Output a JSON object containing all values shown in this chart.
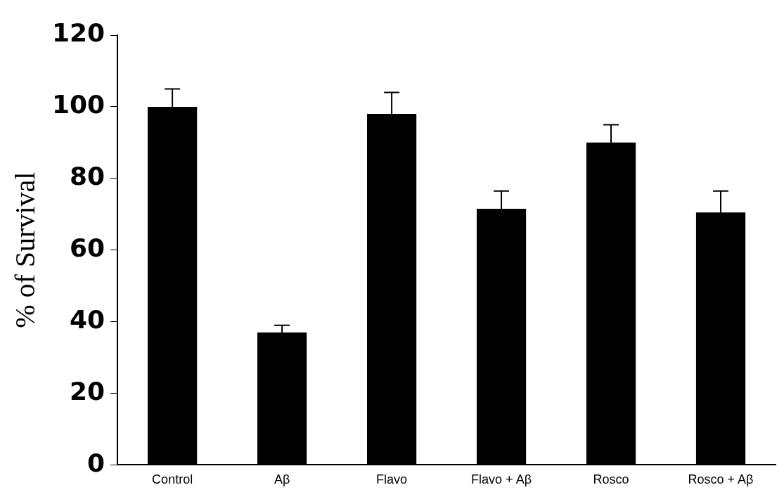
{
  "chart_data": {
    "type": "bar",
    "ylabel": "% of Survival",
    "categories": [
      "Control",
      "Aβ",
      "Flavo",
      "Flavo + Aβ",
      "Rosco",
      "Rosco + Aβ"
    ],
    "values": [
      100,
      37,
      98,
      71.5,
      90,
      70.5
    ],
    "errors": [
      5,
      2,
      6,
      5,
      5,
      6
    ],
    "color": "#000000",
    "ylim": [
      0,
      120
    ],
    "yticks": [
      0,
      20,
      40,
      60,
      80,
      100,
      120
    ],
    "grid": false,
    "legend": false
  }
}
